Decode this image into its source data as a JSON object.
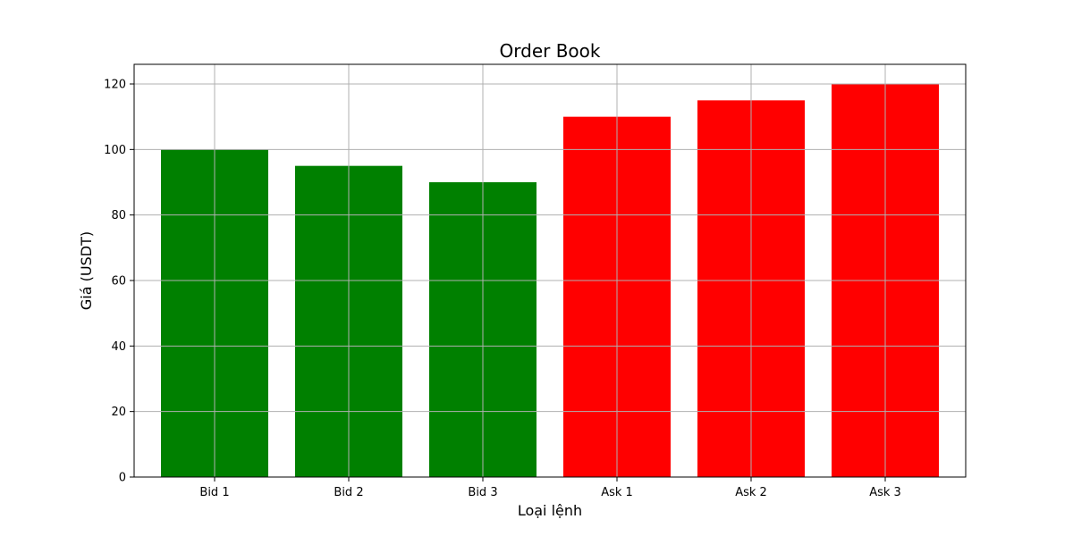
{
  "chart_data": {
    "type": "bar",
    "title": "Order Book",
    "xlabel": "Loại lệnh",
    "ylabel": "Giá (USDT)",
    "categories": [
      "Bid 1",
      "Bid 2",
      "Bid 3",
      "Ask 1",
      "Ask 2",
      "Ask 3"
    ],
    "values": [
      100,
      95,
      90,
      110,
      115,
      120
    ],
    "colors": [
      "#008000",
      "#008000",
      "#008000",
      "#ff0000",
      "#ff0000",
      "#ff0000"
    ],
    "ylim": [
      0,
      126
    ],
    "yticks": [
      0,
      20,
      40,
      60,
      80,
      100,
      120
    ],
    "grid": true
  }
}
